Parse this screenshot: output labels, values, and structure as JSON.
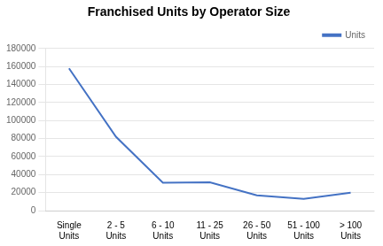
{
  "chart_data": {
    "type": "line",
    "title": "Franchised Units by Operator Size",
    "categories": [
      "Single\nUnits",
      "2 - 5\nUnits",
      "6 - 10\nUnits",
      "11 - 25\nUnits",
      "26 - 50\nUnits",
      "51 - 100\nUnits",
      "> 100\nUnits"
    ],
    "series": [
      {
        "name": "Units",
        "color": "#4472C4",
        "values": [
          158000,
          82000,
          31000,
          31500,
          17000,
          13000,
          20000
        ]
      }
    ],
    "ylim": [
      0,
      180000
    ],
    "yticks": [
      0,
      20000,
      40000,
      60000,
      80000,
      100000,
      120000,
      140000,
      160000,
      180000
    ],
    "grid": true,
    "legend": "upper right"
  }
}
